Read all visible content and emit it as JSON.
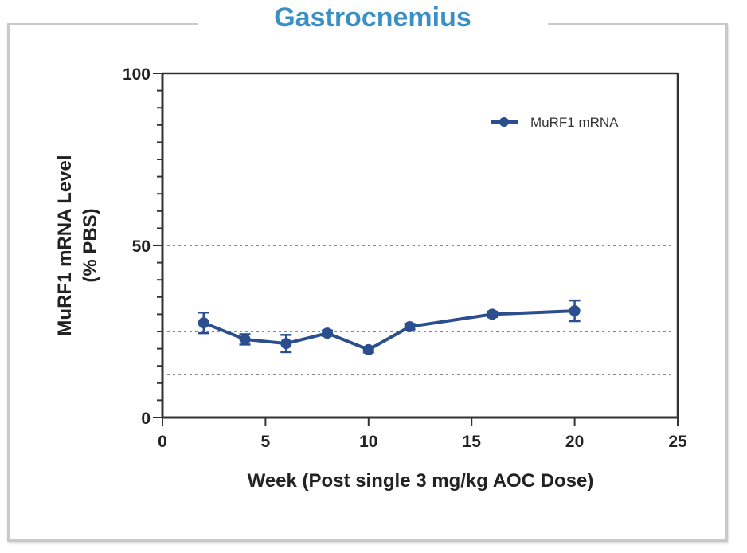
{
  "panel": {
    "title": "Gastrocnemius"
  },
  "chart_data": {
    "type": "line",
    "title": "Gastrocnemius",
    "xlabel": "Week (Post single 3 mg/kg AOC Dose)",
    "ylabel_lines": [
      "MuRF1 mRNA Level",
      "(%  PBS)"
    ],
    "xlim": [
      0,
      25
    ],
    "ylim": [
      0,
      100
    ],
    "x_ticks": [
      0,
      5,
      10,
      15,
      20,
      25
    ],
    "x_tick_labels": [
      "0",
      "5",
      "10",
      "15",
      "20",
      "25"
    ],
    "y_ticks": [
      0,
      50,
      100
    ],
    "y_tick_labels": [
      "0",
      "50",
      "100"
    ],
    "y_minor_tick_step": 5,
    "reference_lines": [
      50,
      25,
      12.5
    ],
    "grid": false,
    "legend_position": "top-right",
    "series": [
      {
        "name": "MuRF1 mRNA",
        "color": "#2b4f8e",
        "x": [
          2,
          4,
          6,
          8,
          10,
          12,
          16,
          20
        ],
        "y": [
          27.5,
          22.7,
          21.5,
          24.5,
          19.7,
          26.4,
          30.0,
          31.0
        ],
        "error": [
          3.0,
          1.5,
          2.5,
          0.8,
          0.8,
          0.8,
          0.8,
          3.0
        ]
      }
    ]
  }
}
